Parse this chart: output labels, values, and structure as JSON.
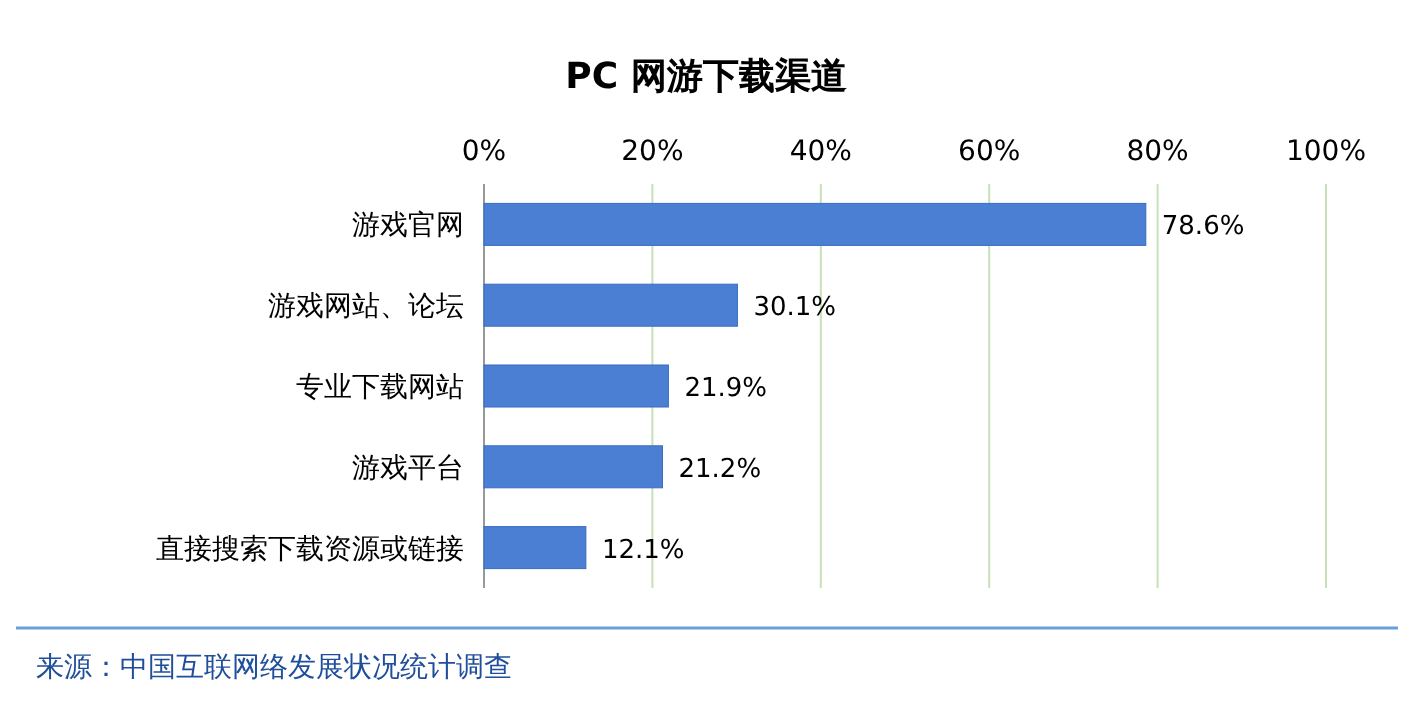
{
  "chart_data": {
    "type": "bar",
    "orientation": "horizontal",
    "title": "PC 网游下载渠道",
    "categories": [
      "游戏官网",
      "游戏网站、论坛",
      "专业下载网站",
      "游戏平台",
      "直接搜索下载资源或链接"
    ],
    "values": [
      78.6,
      30.1,
      21.9,
      21.2,
      12.1
    ],
    "value_labels": [
      "78.6%",
      "30.1%",
      "21.9%",
      "21.2%",
      "12.1%"
    ],
    "color": "#4a7fd4",
    "xlim": [
      0,
      100
    ],
    "xticks": [
      {
        "value": 0,
        "label": "0%"
      },
      {
        "value": 20,
        "label": "20%"
      },
      {
        "value": 40,
        "label": "40%"
      },
      {
        "value": 60,
        "label": "60%"
      },
      {
        "value": 80,
        "label": "80%"
      },
      {
        "value": 100,
        "label": "100%"
      }
    ],
    "grid": "x",
    "annotations": [
      "来源：中国互联网络发展状况统计调查"
    ]
  }
}
